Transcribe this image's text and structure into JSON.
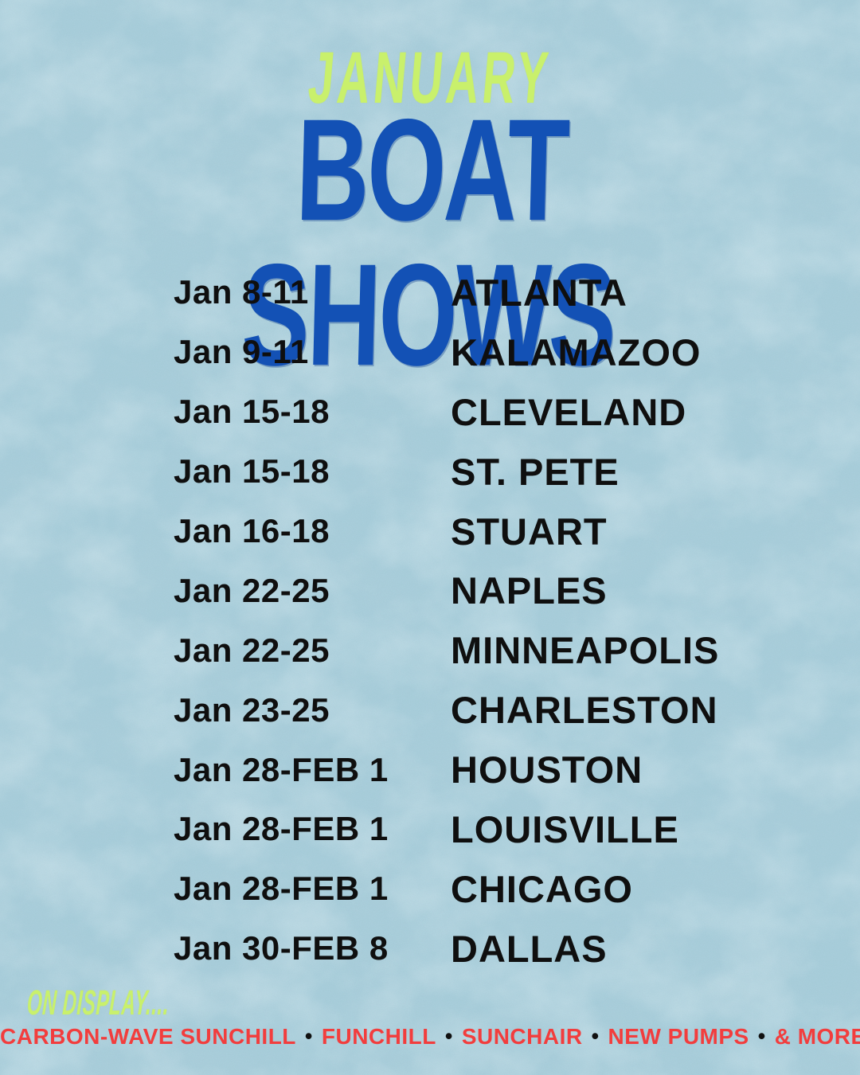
{
  "poster": {
    "month_label": "JANUARY",
    "title": "BOAT SHOWS",
    "schedule": [
      {
        "dates": "Jan 8-11",
        "city": "ATLANTA"
      },
      {
        "dates": "Jan 9-11",
        "city": "KALAMAZOO"
      },
      {
        "dates": "Jan 15-18",
        "city": "CLEVELAND"
      },
      {
        "dates": "Jan 15-18",
        "city": "ST. PETE"
      },
      {
        "dates": "Jan 16-18",
        "city": "STUART"
      },
      {
        "dates": "Jan 22-25",
        "city": "NAPLES"
      },
      {
        "dates": "Jan 22-25",
        "city": "MINNEAPOLIS"
      },
      {
        "dates": "Jan 23-25",
        "city": "CHARLESTON"
      },
      {
        "dates": "Jan 28-FEB 1",
        "city": "HOUSTON"
      },
      {
        "dates": "Jan 28-FEB 1",
        "city": "LOUISVILLE"
      },
      {
        "dates": "Jan 28-FEB 1",
        "city": "CHICAGO"
      },
      {
        "dates": "Jan 30-FEB 8",
        "city": "DALLAS"
      }
    ],
    "footer": {
      "on_display_label": "ON DISPLAY....",
      "display_items": [
        "CARBON-WAVE SUNCHILL",
        "FUNCHILL",
        "SUNCHAIR",
        "NEW PUMPS",
        "& MORE"
      ],
      "separator": "•"
    },
    "colors": {
      "background_blue": "#a9cedb",
      "month_green": "#c9f06c",
      "title_blue": "#1351b5",
      "list_black": "#0f0f0f",
      "footer_red": "#f23d3d"
    }
  }
}
